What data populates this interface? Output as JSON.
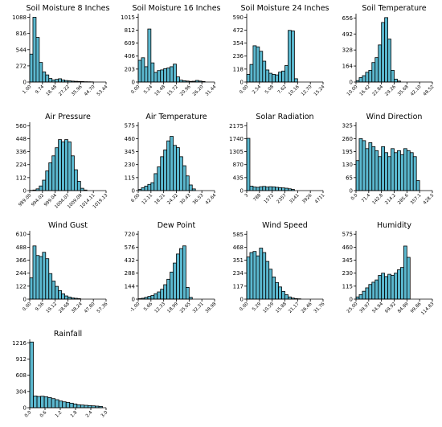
{
  "figure": {
    "bar_color": "#5bb8cf",
    "bar_edge": "#000000"
  },
  "chart_data": [
    {
      "type": "bar",
      "title": "Soil Moisture 8 Inches",
      "yticks": [
        0,
        272,
        544,
        816,
        1088
      ],
      "ylim": [
        0,
        1150
      ],
      "xlim": [
        1.0,
        53.44
      ],
      "xticks": [
        "1.00",
        "9.74",
        "18.48",
        "27.22",
        "35.96",
        "44.70",
        "53.44"
      ],
      "bin_width": 2.185,
      "values": [
        470,
        1090,
        750,
        330,
        170,
        120,
        60,
        35,
        45,
        55,
        35,
        25,
        20,
        15,
        12,
        10,
        8,
        5,
        4,
        3
      ]
    },
    {
      "type": "bar",
      "title": "Soil Moisture 16 Inches",
      "yticks": [
        0,
        203,
        406,
        609,
        812,
        1015
      ],
      "ylim": [
        0,
        1070
      ],
      "xlim": [
        0.0,
        31.44
      ],
      "xticks": [
        "0.00",
        "5.24",
        "10.48",
        "15.72",
        "20.96",
        "26.20",
        "31.44"
      ],
      "bin_width": 1.31,
      "values": [
        340,
        380,
        240,
        830,
        300,
        150,
        180,
        190,
        210,
        220,
        240,
        280,
        80,
        30,
        20,
        15,
        10,
        12,
        25,
        15,
        8
      ]
    },
    {
      "type": "bar",
      "title": "Soil Moisture 24 Inches",
      "yticks": [
        0,
        118,
        236,
        354,
        472,
        590
      ],
      "ylim": [
        0,
        622
      ],
      "xlim": [
        0.0,
        15.24
      ],
      "xticks": [
        "0.00",
        "2.54",
        "5.08",
        "7.62",
        "10.16",
        "12.70",
        "15.24"
      ],
      "bin_width": 0.635,
      "values": [
        70,
        160,
        330,
        320,
        280,
        190,
        110,
        80,
        70,
        65,
        90,
        100,
        150,
        470,
        465,
        30
      ]
    },
    {
      "type": "bar",
      "title": "Soil Temperature",
      "yticks": [
        0,
        164,
        328,
        492,
        656
      ],
      "ylim": [
        0,
        700
      ],
      "xlim": [
        10.0,
        48.52
      ],
      "xticks": [
        "10.00",
        "16.42",
        "22.84",
        "29.26",
        "35.68",
        "42.10",
        "48.52"
      ],
      "bin_width": 1.605,
      "values": [
        15,
        45,
        65,
        100,
        120,
        200,
        250,
        380,
        610,
        660,
        440,
        120,
        30,
        10
      ]
    },
    {
      "type": "bar",
      "title": "Air Pressure",
      "yticks": [
        0,
        112,
        224,
        336,
        448,
        560
      ],
      "ylim": [
        0,
        590
      ],
      "xlim": [
        989.0,
        1019.13
      ],
      "xticks": [
        "989.00",
        "994.02",
        "999.04",
        "1004.07",
        "1009.09",
        "1014.11",
        "1019.13"
      ],
      "bin_width": 1.255,
      "values": [
        2,
        5,
        15,
        40,
        90,
        170,
        240,
        300,
        370,
        440,
        420,
        440,
        420,
        300,
        180,
        80,
        20,
        5
      ]
    },
    {
      "type": "bar",
      "title": "Air Temperature",
      "yticks": [
        0,
        115,
        230,
        345,
        460,
        575
      ],
      "ylim": [
        0,
        605
      ],
      "xlim": [
        6.0,
        42.64
      ],
      "xticks": [
        "6.00",
        "12.11",
        "18.21",
        "24.32",
        "30.43",
        "36.53",
        "42.64"
      ],
      "bin_width": 1.526,
      "values": [
        10,
        25,
        40,
        55,
        70,
        150,
        210,
        300,
        360,
        440,
        480,
        400,
        380,
        300,
        220,
        130,
        50,
        15
      ]
    },
    {
      "type": "bar",
      "title": "Solar Radiation",
      "yticks": [
        0,
        435,
        870,
        1305,
        1740,
        2175
      ],
      "ylim": [
        0,
        2290
      ],
      "xlim": [
        3,
        4711
      ],
      "xticks": [
        "3",
        "788",
        "1572",
        "2357",
        "3141",
        "3926",
        "4711"
      ],
      "bin_width": 196.2,
      "values": [
        1750,
        150,
        120,
        110,
        130,
        140,
        120,
        130,
        125,
        110,
        100,
        90,
        80,
        60,
        40
      ]
    },
    {
      "type": "bar",
      "title": "Wind Direction",
      "yticks": [
        0,
        65,
        130,
        195,
        260,
        325
      ],
      "ylim": [
        0,
        342
      ],
      "xlim": [
        0.0,
        428.5
      ],
      "xticks": [
        "0.0",
        "71.4",
        "142.8",
        "214.2",
        "285.6",
        "357.1",
        "428.5"
      ],
      "bin_width": 17.85,
      "values": [
        150,
        260,
        250,
        210,
        240,
        220,
        200,
        170,
        220,
        190,
        170,
        210,
        190,
        200,
        180,
        210,
        200,
        190,
        170,
        50
      ]
    },
    {
      "type": "bar",
      "title": "Wind Gust",
      "yticks": [
        0,
        122,
        244,
        366,
        488,
        610
      ],
      "ylim": [
        0,
        642
      ],
      "xlim": [
        0.0,
        57.36
      ],
      "xticks": [
        "0.00",
        "9.56",
        "19.12",
        "28.68",
        "38.24",
        "47.80",
        "57.36"
      ],
      "bin_width": 2.39,
      "values": [
        200,
        500,
        410,
        400,
        440,
        380,
        240,
        170,
        120,
        80,
        50,
        30,
        20,
        12,
        8,
        5
      ]
    },
    {
      "type": "bar",
      "title": "Dew Point",
      "yticks": [
        0,
        144,
        288,
        432,
        576,
        720
      ],
      "ylim": [
        0,
        757
      ],
      "xlim": [
        -1.0,
        38.98
      ],
      "xticks": [
        "-1.00",
        "5.66",
        "12.33",
        "18.99",
        "25.65",
        "32.31",
        "38.98"
      ],
      "bin_width": 1.666,
      "values": [
        5,
        10,
        20,
        30,
        40,
        60,
        80,
        110,
        160,
        220,
        300,
        400,
        500,
        560,
        590,
        130,
        20
      ]
    },
    {
      "type": "bar",
      "title": "Wind Speed",
      "yticks": [
        0,
        117,
        234,
        351,
        468,
        585
      ],
      "ylim": [
        0,
        616
      ],
      "xlim": [
        0.0,
        31.76
      ],
      "xticks": [
        "0.00",
        "5.29",
        "10.59",
        "15.88",
        "21.17",
        "26.46",
        "31.76"
      ],
      "bin_width": 1.323,
      "values": [
        380,
        420,
        430,
        390,
        460,
        420,
        340,
        270,
        200,
        150,
        110,
        70,
        40,
        20,
        10,
        5,
        3
      ]
    },
    {
      "type": "bar",
      "title": "Humidity",
      "yticks": [
        0,
        115,
        230,
        345,
        460,
        575
      ],
      "ylim": [
        0,
        605
      ],
      "xlim": [
        25.0,
        114.83
      ],
      "xticks": [
        "25.00",
        "39.97",
        "54.94",
        "69.92",
        "84.89",
        "99.86",
        "114.83"
      ],
      "bin_width": 3.743,
      "values": [
        20,
        40,
        70,
        100,
        130,
        150,
        170,
        210,
        230,
        200,
        220,
        210,
        230,
        260,
        280,
        470,
        370
      ]
    },
    {
      "type": "bar",
      "title": "Rainfall",
      "yticks": [
        0,
        304,
        608,
        912,
        1216
      ],
      "ylim": [
        0,
        1280
      ],
      "xlim": [
        0.0,
        3.15
      ],
      "xticks": [
        "0.0",
        "0.6",
        "1.2",
        "1.8",
        "2.4",
        "3.0"
      ],
      "bin_width": 0.15,
      "values": [
        1230,
        220,
        210,
        215,
        205,
        190,
        170,
        150,
        125,
        110,
        100,
        85,
        70,
        55,
        50,
        45,
        40,
        35,
        30,
        25
      ]
    }
  ]
}
